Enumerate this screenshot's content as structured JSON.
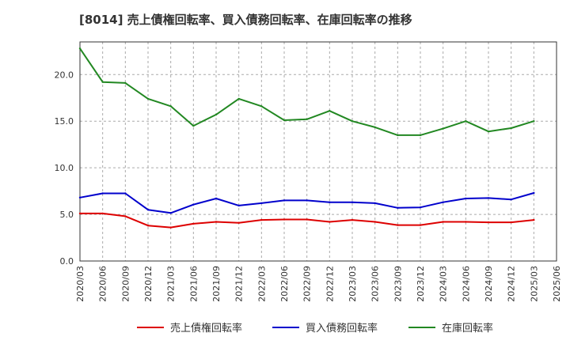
{
  "chart_data": {
    "type": "line",
    "title": "[8014]  売上債権回転率、買入債務回転率、在庫回転率の推移",
    "xlabel": "",
    "ylabel": "",
    "ylim": [
      0,
      23.5
    ],
    "yticks": [
      0,
      5,
      10,
      15,
      20
    ],
    "ytick_labels": [
      "0.0",
      "5.0",
      "10.0",
      "15.0",
      "20.0"
    ],
    "grid": true,
    "legend_position": "bottom",
    "categories": [
      "2020/03",
      "2020/06",
      "2020/09",
      "2020/12",
      "2021/03",
      "2021/06",
      "2021/09",
      "2021/12",
      "2022/03",
      "2022/06",
      "2022/09",
      "2022/12",
      "2023/03",
      "2023/06",
      "2023/09",
      "2023/12",
      "2024/03",
      "2024/06",
      "2024/09",
      "2024/12",
      "2025/03",
      "2025/06"
    ],
    "series": [
      {
        "name": "売上債権回転率",
        "color": "#dd0000",
        "values": [
          5.1,
          5.1,
          4.8,
          3.8,
          3.6,
          4.0,
          4.2,
          4.1,
          4.4,
          4.45,
          4.45,
          4.2,
          4.4,
          4.2,
          3.85,
          3.85,
          4.2,
          4.2,
          4.15,
          4.15,
          4.4,
          null
        ]
      },
      {
        "name": "買入債務回転率",
        "color": "#0000cc",
        "values": [
          6.8,
          7.25,
          7.25,
          5.5,
          5.15,
          6.05,
          6.7,
          5.95,
          6.2,
          6.5,
          6.5,
          6.3,
          6.3,
          6.2,
          5.7,
          5.75,
          6.3,
          6.7,
          6.75,
          6.6,
          7.3,
          null
        ]
      },
      {
        "name": "在庫回転率",
        "color": "#228822",
        "values": [
          22.8,
          19.2,
          19.1,
          17.4,
          16.6,
          14.5,
          15.7,
          17.4,
          16.6,
          15.1,
          15.2,
          16.1,
          15.0,
          14.35,
          13.5,
          13.5,
          14.2,
          15.0,
          13.9,
          14.25,
          15.0,
          null
        ]
      }
    ]
  },
  "colors": {
    "grid": "#aaaaaa",
    "axis": "#333333",
    "background": "#ffffff"
  }
}
